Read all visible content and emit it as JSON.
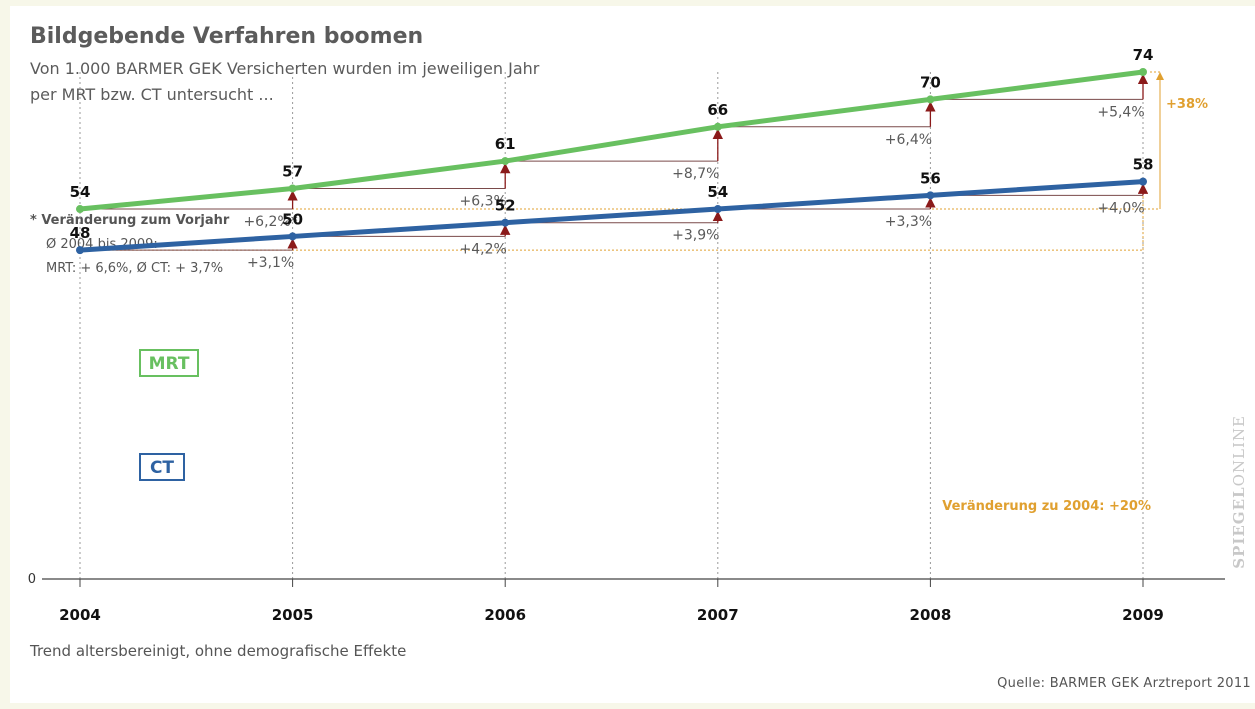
{
  "title": "Bildgebende Verfahren boomen",
  "subtitle": "Von 1.000 BARMER GEK Versicherten wurden im jeweiligen Jahr per MRT bzw. CT untersucht ...",
  "note": {
    "heading": "* Veränderung zum Vorjahr",
    "line1": "Ø 2004  bis 2009:",
    "line2": "MRT: + 6,6%, Ø CT: + 3,7%"
  },
  "footnote": "Trend altersbereinigt, ohne demografische Effekte",
  "source": "Quelle: BARMER GEK Arztreport 2011",
  "brand": {
    "bold": "SPIEGEL",
    "thin": "ONLINE"
  },
  "colors": {
    "mrt": "#68c060",
    "ct": "#2e62a2",
    "orange": "#e0a030",
    "arrow": "#8b1a1a"
  },
  "chart_data": {
    "type": "line",
    "x": [
      "2004",
      "2005",
      "2006",
      "2007",
      "2008",
      "2009"
    ],
    "ylim": [
      0,
      74
    ],
    "y_ticks": [
      "0"
    ],
    "grid": "vertical dotted",
    "series": [
      {
        "name": "MRT",
        "values": [
          54,
          57,
          61,
          66,
          70,
          74
        ],
        "changes": [
          "+6,2%*",
          "+6,3%",
          "+8,7%",
          "+6,4%",
          "+5,4%"
        ],
        "total_change": "+38%"
      },
      {
        "name": "CT",
        "values": [
          48,
          50,
          52,
          54,
          56,
          58
        ],
        "changes": [
          "+3,1%",
          "+4,2%",
          "+3,9%",
          "+3,3%",
          "+4,0%"
        ],
        "total_change": "Veränderung zu 2004: +20%"
      }
    ]
  }
}
